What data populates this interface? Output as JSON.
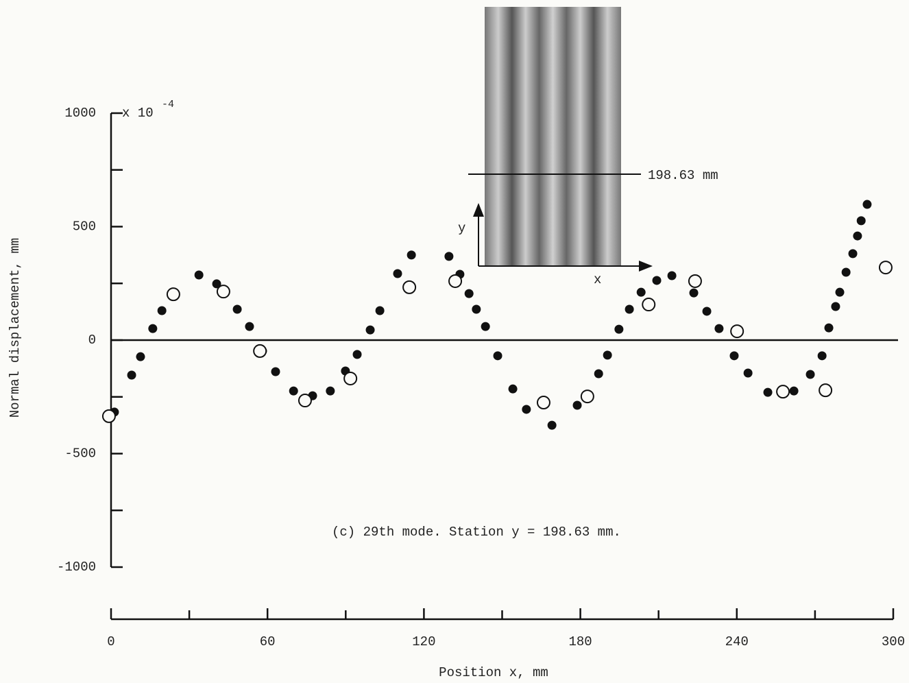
{
  "chart_data": {
    "type": "scatter",
    "ylabel": "Normal displacement, mm",
    "xlabel": "Position x, mm",
    "scale_label": "x 10",
    "scale_exponent": "-4",
    "caption": "(c)  29th mode.  Station  y = 198.63 mm.",
    "inset": {
      "station_label": "198.63 mm",
      "y_arrow_label": "y",
      "x_arrow_label": "x"
    },
    "xlim": [
      0,
      300
    ],
    "xticks": [
      0,
      60,
      120,
      180,
      240,
      300
    ],
    "xminorticks": [
      30,
      90,
      150,
      210,
      270
    ],
    "ylim": [
      -1000,
      1000
    ],
    "yticks": [
      -1000,
      -500,
      0,
      500,
      1000
    ],
    "yminorticks": [
      -750,
      -250,
      250,
      750
    ],
    "zero_line": true,
    "series": [
      {
        "color": "#111111",
        "marker": "filled",
        "x": [
          1.3,
          7.9,
          11.3,
          16,
          19.5,
          33.7,
          40.5,
          48.4,
          53.1,
          58.1,
          63.1,
          70,
          77.3,
          84.1,
          89.9,
          94.4,
          99.4,
          103.1,
          109.9,
          115.2,
          129.6,
          133.8,
          137.3,
          140.1,
          143.6,
          148.3,
          154.1,
          159.3,
          169.1,
          178.8,
          187,
          190.4,
          194.8,
          198.8,
          203.3,
          209.3,
          215.1,
          223.5,
          228.5,
          233.2,
          239,
          244.3,
          251.9,
          261.9,
          268.2,
          272.7,
          275.3,
          277.9,
          279.5,
          281.9,
          284.5,
          286.3,
          287.7,
          290
        ],
        "values": [
          -317,
          -154,
          -73,
          51,
          130,
          287,
          248,
          136,
          60,
          -48,
          -139,
          -224,
          -245,
          -224,
          -136,
          -63,
          45,
          130,
          293,
          375,
          369,
          290,
          205,
          136,
          60,
          -69,
          -215,
          -305,
          -375,
          -287,
          -148,
          -66,
          48,
          136,
          211,
          263,
          284,
          208,
          127,
          51,
          -69,
          -145,
          -230,
          -224,
          -151,
          -69,
          54,
          148,
          211,
          299,
          381,
          459,
          526,
          598
        ]
      },
      {
        "color": "#111111",
        "marker": "open",
        "x": [
          -0.8,
          23.9,
          43.1,
          57.1,
          74.4,
          91.8,
          114.4,
          132,
          165.9,
          182.7,
          206.2,
          224,
          240.1,
          257.7,
          274,
          297.1
        ],
        "values": [
          -335,
          202,
          214,
          -48,
          -266,
          -169,
          233,
          260,
          -275,
          -248,
          157,
          260,
          39,
          -227,
          -221,
          320
        ]
      }
    ]
  }
}
